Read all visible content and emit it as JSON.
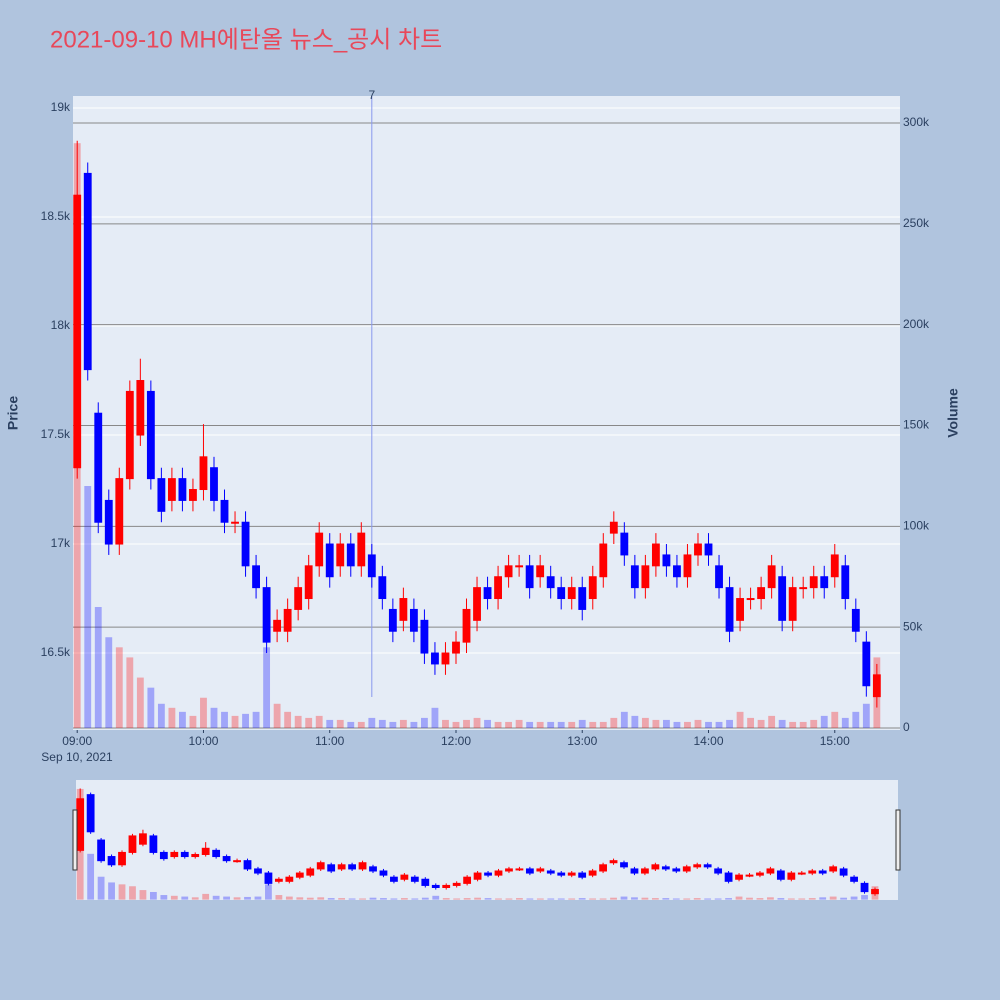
{
  "chart_data": {
    "type": "candlestick",
    "title": "2021-09-10 MH에탄올 뉴스_공시 차트",
    "y_label": "Price",
    "y2_label": "Volume",
    "x": [
      "2021-09-10 09:00",
      "2021-09-10 09:05",
      "2021-09-10 09:10",
      "2021-09-10 09:15",
      "2021-09-10 09:20",
      "2021-09-10 09:25",
      "2021-09-10 09:30",
      "2021-09-10 09:35",
      "2021-09-10 09:40",
      "2021-09-10 09:45",
      "2021-09-10 09:50",
      "2021-09-10 09:55",
      "2021-09-10 10:00",
      "2021-09-10 10:05",
      "2021-09-10 10:10",
      "2021-09-10 10:15",
      "2021-09-10 10:20",
      "2021-09-10 10:25",
      "2021-09-10 10:30",
      "2021-09-10 10:35",
      "2021-09-10 10:40",
      "2021-09-10 10:45",
      "2021-09-10 10:50",
      "2021-09-10 10:55",
      "2021-09-10 11:00",
      "2021-09-10 11:05",
      "2021-09-10 11:10",
      "2021-09-10 11:15",
      "2021-09-10 11:20",
      "2021-09-10 11:25",
      "2021-09-10 11:30",
      "2021-09-10 11:35",
      "2021-09-10 11:40",
      "2021-09-10 11:45",
      "2021-09-10 11:50",
      "2021-09-10 11:55",
      "2021-09-10 12:00",
      "2021-09-10 12:05",
      "2021-09-10 12:10",
      "2021-09-10 12:15",
      "2021-09-10 12:20",
      "2021-09-10 12:25",
      "2021-09-10 12:30",
      "2021-09-10 12:35",
      "2021-09-10 12:40",
      "2021-09-10 12:45",
      "2021-09-10 12:50",
      "2021-09-10 12:55",
      "2021-09-10 13:00",
      "2021-09-10 13:05",
      "2021-09-10 13:10",
      "2021-09-10 13:15",
      "2021-09-10 13:20",
      "2021-09-10 13:25",
      "2021-09-10 13:30",
      "2021-09-10 13:35",
      "2021-09-10 13:40",
      "2021-09-10 13:45",
      "2021-09-10 13:50",
      "2021-09-10 13:55",
      "2021-09-10 14:00",
      "2021-09-10 14:05",
      "2021-09-10 14:10",
      "2021-09-10 14:15",
      "2021-09-10 14:20",
      "2021-09-10 14:25",
      "2021-09-10 14:30",
      "2021-09-10 14:35",
      "2021-09-10 14:40",
      "2021-09-10 14:45",
      "2021-09-10 14:50",
      "2021-09-10 14:55",
      "2021-09-10 15:00",
      "2021-09-10 15:05",
      "2021-09-10 15:10",
      "2021-09-10 15:15",
      "2021-09-10 15:20"
    ],
    "open": [
      17350,
      18700,
      17600,
      17200,
      17000,
      17300,
      17500,
      17700,
      17300,
      17200,
      17300,
      17200,
      17250,
      17350,
      17200,
      17100,
      17100,
      16900,
      16800,
      16600,
      16600,
      16700,
      16750,
      16900,
      17000,
      16900,
      17000,
      16900,
      16950,
      16850,
      16700,
      16650,
      16700,
      16650,
      16500,
      16450,
      16500,
      16550,
      16650,
      16800,
      16750,
      16850,
      16900,
      16900,
      16850,
      16850,
      16800,
      16750,
      16800,
      16750,
      16850,
      17050,
      17050,
      16900,
      16800,
      16900,
      16950,
      16900,
      16850,
      16950,
      17000,
      16900,
      16800,
      16650,
      16750,
      16750,
      16800,
      16850,
      16650,
      16800,
      16800,
      16850,
      16850,
      16900,
      16700,
      16550,
      16300
    ],
    "high": [
      18850,
      18750,
      17650,
      17250,
      17350,
      17750,
      17850,
      17750,
      17350,
      17350,
      17350,
      17300,
      17550,
      17400,
      17250,
      17150,
      17150,
      16950,
      16850,
      16700,
      16750,
      16850,
      16950,
      17100,
      17050,
      17050,
      17050,
      17100,
      17000,
      16900,
      16750,
      16800,
      16750,
      16700,
      16550,
      16550,
      16600,
      16750,
      16850,
      16850,
      16900,
      16950,
      16950,
      16950,
      16950,
      16900,
      16850,
      16850,
      16850,
      16900,
      17050,
      17150,
      17100,
      16950,
      16950,
      17050,
      17000,
      16950,
      17000,
      17050,
      17050,
      16950,
      16850,
      16800,
      16800,
      16850,
      16950,
      16900,
      16850,
      16850,
      16900,
      16900,
      17000,
      16950,
      16750,
      16600,
      16450
    ],
    "low": [
      17300,
      17750,
      17050,
      16950,
      16950,
      17250,
      17450,
      17250,
      17100,
      17150,
      17150,
      17150,
      17200,
      17150,
      17050,
      17050,
      16850,
      16750,
      16500,
      16550,
      16550,
      16650,
      16700,
      16850,
      16800,
      16850,
      16850,
      16850,
      16800,
      16700,
      16550,
      16600,
      16550,
      16450,
      16400,
      16400,
      16450,
      16500,
      16600,
      16700,
      16700,
      16800,
      16850,
      16750,
      16800,
      16750,
      16700,
      16700,
      16650,
      16700,
      16800,
      17000,
      16900,
      16750,
      16750,
      16850,
      16850,
      16800,
      16800,
      16900,
      16900,
      16750,
      16550,
      16600,
      16700,
      16700,
      16750,
      16600,
      16600,
      16750,
      16750,
      16750,
      16800,
      16700,
      16550,
      16300,
      16250
    ],
    "close": [
      18600,
      17800,
      17100,
      17000,
      17300,
      17700,
      17750,
      17300,
      17150,
      17300,
      17200,
      17250,
      17400,
      17200,
      17100,
      17100,
      16900,
      16800,
      16550,
      16650,
      16700,
      16800,
      16900,
      17050,
      16850,
      17000,
      16900,
      17050,
      16850,
      16750,
      16600,
      16750,
      16600,
      16500,
      16450,
      16500,
      16550,
      16700,
      16800,
      16750,
      16850,
      16900,
      16900,
      16800,
      16900,
      16800,
      16750,
      16800,
      16700,
      16850,
      17000,
      17100,
      16950,
      16800,
      16900,
      17000,
      16900,
      16850,
      16950,
      17000,
      16950,
      16800,
      16600,
      16750,
      16750,
      16800,
      16900,
      16650,
      16800,
      16800,
      16850,
      16800,
      16950,
      16750,
      16600,
      16350,
      16400
    ],
    "volume": [
      290000,
      120000,
      60000,
      45000,
      40000,
      35000,
      25000,
      20000,
      12000,
      10000,
      8000,
      6000,
      15000,
      10000,
      8000,
      6000,
      7000,
      8000,
      40000,
      12000,
      8000,
      6000,
      5000,
      6000,
      4000,
      4000,
      3000,
      3000,
      5000,
      4000,
      3000,
      4000,
      3000,
      5000,
      10000,
      4000,
      3000,
      4000,
      5000,
      4000,
      3000,
      3000,
      4000,
      3000,
      3000,
      3000,
      3000,
      3000,
      4000,
      3000,
      3000,
      5000,
      8000,
      6000,
      5000,
      4000,
      4000,
      3000,
      3000,
      4000,
      3000,
      3000,
      4000,
      8000,
      5000,
      4000,
      6000,
      4000,
      3000,
      3000,
      4000,
      6000,
      8000,
      5000,
      8000,
      12000,
      35000
    ],
    "increasing_color": "#ff0000",
    "decreasing_color": "#0000ff",
    "xlim": [
      "2021-09-10 08:58",
      "2021-09-10 15:31"
    ],
    "xticks": [
      {
        "value": "2021-09-10 09:00",
        "label": "09:00"
      },
      {
        "value": "2021-09-10 10:00",
        "label": "10:00"
      },
      {
        "value": "2021-09-10 11:00",
        "label": "11:00"
      },
      {
        "value": "2021-09-10 12:00",
        "label": "12:00"
      },
      {
        "value": "2021-09-10 13:00",
        "label": "13:00"
      },
      {
        "value": "2021-09-10 14:00",
        "label": "14:00"
      },
      {
        "value": "2021-09-10 15:00",
        "label": "15:00"
      }
    ],
    "x_date_label": "Sep 10, 2021",
    "ylim": [
      16147,
      19055
    ],
    "yticks": [
      {
        "value": 16500,
        "label": "16.5k"
      },
      {
        "value": 17000,
        "label": "17k"
      },
      {
        "value": 17500,
        "label": "17.5k"
      },
      {
        "value": 18000,
        "label": "18k"
      },
      {
        "value": 18500,
        "label": "18.5k"
      },
      {
        "value": 19000,
        "label": "19k"
      }
    ],
    "y2lim": [
      -1000,
      313400
    ],
    "y2ticks": [
      0,
      {
        "value": 50000,
        "label": "50k"
      },
      {
        "value": 100000,
        "label": "100k"
      },
      {
        "value": 150000,
        "label": "150k"
      },
      {
        "value": 200000,
        "label": "200k"
      },
      {
        "value": 250000,
        "label": "250k"
      },
      {
        "value": 300000,
        "label": "300k"
      }
    ],
    "annotation": {
      "x": "2021-09-10 11:20",
      "text": "7"
    },
    "grid": true,
    "rangeslider": true
  }
}
